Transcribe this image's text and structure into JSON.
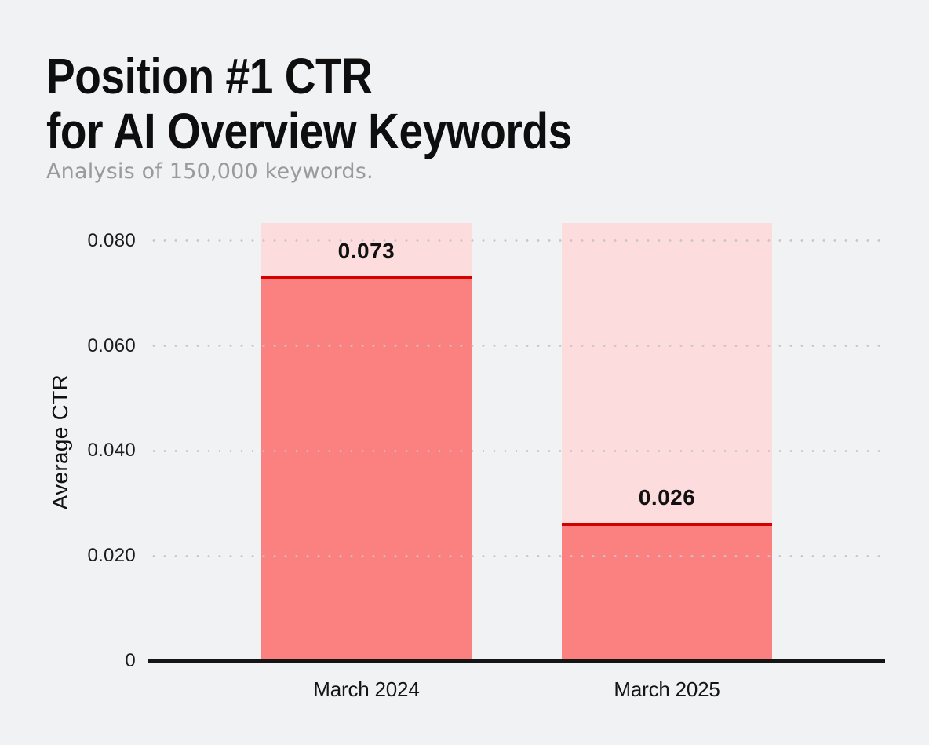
{
  "header": {
    "title_line1": "Position #1 CTR",
    "title_line2": "for AI Overview Keywords",
    "subtitle": "Analysis of 150,000 keywords."
  },
  "chart_data": {
    "type": "bar",
    "title": "Position #1 CTR for AI Overview Keywords",
    "subtitle": "Analysis of 150,000 keywords.",
    "categories": [
      "March 2024",
      "March 2025"
    ],
    "values": [
      0.073,
      0.026
    ],
    "value_labels": [
      "0.073",
      "0.026"
    ],
    "xlabel": "",
    "ylabel": "Average CTR",
    "ylim": [
      0,
      0.0834
    ],
    "yticks": [
      {
        "value": 0,
        "label": "0"
      },
      {
        "value": 0.02,
        "label": "0.020"
      },
      {
        "value": 0.04,
        "label": "0.040"
      },
      {
        "value": 0.06,
        "label": "0.060"
      },
      {
        "value": 0.08,
        "label": "0.080"
      }
    ],
    "grid": "horizontal-dotted, drawn above bars",
    "legend": "none",
    "bar_style": "full-height light track, solid fill to value, dark red rule at value, bold label above rule",
    "colors": {
      "background": "#F1F2F4",
      "bar_fill": "#FB8180",
      "bar_track": "#FCDCDD",
      "value_line": "#D40000",
      "axis_line": "#151515",
      "grid_dot": "#C6C6CB",
      "title_text": "#0E0E0E",
      "subtitle_text": "#9A9A9E",
      "tick_text": "#1B1B1B"
    },
    "layout": {
      "bar_center_fractions": [
        0.296,
        0.704
      ],
      "bar_width_fraction": 0.2854
    }
  }
}
